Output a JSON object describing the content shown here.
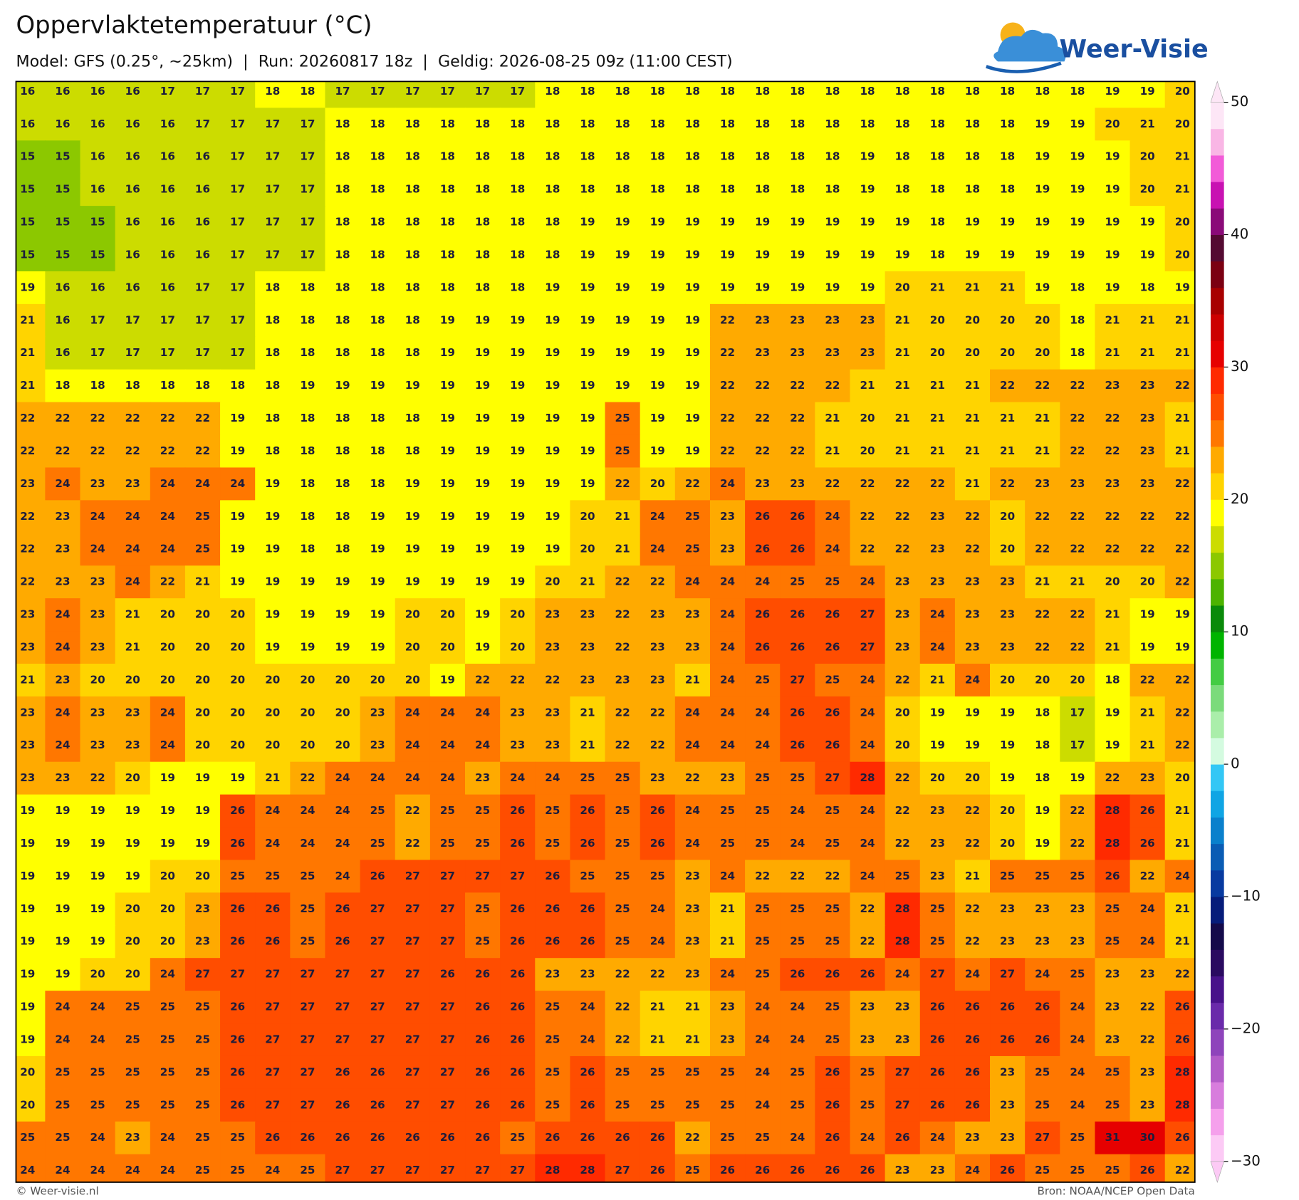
{
  "header": {
    "title": "Oppervlaktetemperatuur (°C)",
    "subtitle": "Model: GFS (0.25°, ~25km)  |  Run: 20260817 18z  |  Geldig: 2026-08-25 09z (11:00 CEST)",
    "logo": "Weer-Visie"
  },
  "map": {
    "values": [
      [
        16,
        16,
        16,
        16,
        17,
        17,
        17,
        18,
        18,
        17,
        17,
        17,
        17,
        17,
        17,
        18,
        18,
        18,
        18,
        18,
        18,
        18,
        18,
        18,
        18,
        18,
        18,
        18,
        18,
        18,
        18,
        19,
        19,
        20
      ],
      [
        16,
        16,
        16,
        16,
        16,
        17,
        17,
        17,
        17,
        18,
        18,
        18,
        18,
        18,
        18,
        18,
        18,
        18,
        18,
        18,
        18,
        18,
        18,
        18,
        18,
        18,
        18,
        18,
        18,
        19,
        19,
        20,
        21,
        20
      ],
      [
        15,
        15,
        16,
        16,
        16,
        16,
        17,
        17,
        17,
        18,
        18,
        18,
        18,
        18,
        18,
        18,
        18,
        18,
        18,
        18,
        18,
        18,
        18,
        18,
        19,
        18,
        18,
        18,
        18,
        19,
        19,
        19,
        20,
        21
      ],
      [
        15,
        15,
        16,
        16,
        16,
        16,
        17,
        17,
        17,
        18,
        18,
        18,
        18,
        18,
        18,
        18,
        18,
        18,
        18,
        18,
        18,
        18,
        18,
        18,
        19,
        18,
        18,
        18,
        18,
        19,
        19,
        19,
        20,
        21
      ],
      [
        15,
        15,
        15,
        16,
        16,
        16,
        17,
        17,
        17,
        18,
        18,
        18,
        18,
        18,
        18,
        18,
        19,
        19,
        19,
        19,
        19,
        19,
        19,
        19,
        19,
        19,
        18,
        19,
        19,
        19,
        19,
        19,
        19,
        20
      ],
      [
        15,
        15,
        15,
        16,
        16,
        16,
        17,
        17,
        17,
        18,
        18,
        18,
        18,
        18,
        18,
        18,
        19,
        19,
        19,
        19,
        19,
        19,
        19,
        19,
        19,
        19,
        18,
        19,
        19,
        19,
        19,
        19,
        19,
        20
      ],
      [
        19,
        16,
        16,
        16,
        16,
        17,
        17,
        18,
        18,
        18,
        18,
        18,
        18,
        18,
        18,
        19,
        19,
        19,
        19,
        19,
        19,
        19,
        19,
        19,
        19,
        20,
        21,
        21,
        21,
        19,
        18,
        19,
        18,
        19
      ],
      [
        21,
        16,
        17,
        17,
        17,
        17,
        17,
        18,
        18,
        18,
        18,
        18,
        19,
        19,
        19,
        19,
        19,
        19,
        19,
        19,
        22,
        23,
        23,
        23,
        23,
        21,
        20,
        20,
        20,
        20,
        18,
        21,
        21,
        21
      ],
      [
        21,
        16,
        17,
        17,
        17,
        17,
        17,
        18,
        18,
        18,
        18,
        18,
        19,
        19,
        19,
        19,
        19,
        19,
        19,
        19,
        22,
        23,
        23,
        23,
        23,
        21,
        20,
        20,
        20,
        20,
        18,
        21,
        21,
        21
      ],
      [
        21,
        18,
        18,
        18,
        18,
        18,
        18,
        18,
        19,
        19,
        19,
        19,
        19,
        19,
        19,
        19,
        19,
        19,
        19,
        19,
        22,
        22,
        22,
        22,
        21,
        21,
        21,
        21,
        22,
        22,
        22,
        23,
        23,
        22
      ],
      [
        22,
        22,
        22,
        22,
        22,
        22,
        19,
        18,
        18,
        18,
        18,
        18,
        19,
        19,
        19,
        19,
        19,
        25,
        19,
        19,
        22,
        22,
        22,
        21,
        20,
        21,
        21,
        21,
        21,
        21,
        22,
        22,
        23,
        21
      ],
      [
        22,
        22,
        22,
        22,
        22,
        22,
        19,
        18,
        18,
        18,
        18,
        18,
        19,
        19,
        19,
        19,
        19,
        25,
        19,
        19,
        22,
        22,
        22,
        21,
        20,
        21,
        21,
        21,
        21,
        21,
        22,
        22,
        23,
        21
      ],
      [
        23,
        24,
        23,
        23,
        24,
        24,
        24,
        19,
        18,
        18,
        18,
        19,
        19,
        19,
        19,
        19,
        19,
        22,
        20,
        22,
        24,
        23,
        23,
        22,
        22,
        22,
        22,
        21,
        22,
        23,
        23,
        23,
        23,
        22
      ],
      [
        22,
        23,
        24,
        24,
        24,
        25,
        19,
        19,
        18,
        18,
        19,
        19,
        19,
        19,
        19,
        19,
        20,
        21,
        24,
        25,
        23,
        26,
        26,
        24,
        22,
        22,
        23,
        22,
        20,
        22,
        22,
        22,
        22,
        22
      ],
      [
        22,
        23,
        24,
        24,
        24,
        25,
        19,
        19,
        18,
        18,
        19,
        19,
        19,
        19,
        19,
        19,
        20,
        21,
        24,
        25,
        23,
        26,
        26,
        24,
        22,
        22,
        23,
        22,
        20,
        22,
        22,
        22,
        22,
        22
      ],
      [
        22,
        23,
        23,
        24,
        22,
        21,
        19,
        19,
        19,
        19,
        19,
        19,
        19,
        19,
        19,
        20,
        21,
        22,
        22,
        24,
        24,
        24,
        25,
        25,
        24,
        23,
        23,
        23,
        23,
        21,
        21,
        20,
        20,
        22
      ],
      [
        23,
        24,
        23,
        21,
        20,
        20,
        20,
        19,
        19,
        19,
        19,
        20,
        20,
        19,
        20,
        23,
        23,
        22,
        23,
        23,
        24,
        26,
        26,
        26,
        27,
        23,
        24,
        23,
        23,
        22,
        22,
        21,
        19,
        19
      ],
      [
        23,
        24,
        23,
        21,
        20,
        20,
        20,
        19,
        19,
        19,
        19,
        20,
        20,
        19,
        20,
        23,
        23,
        22,
        23,
        23,
        24,
        26,
        26,
        26,
        27,
        23,
        24,
        23,
        23,
        22,
        22,
        21,
        19,
        19
      ],
      [
        21,
        23,
        20,
        20,
        20,
        20,
        20,
        20,
        20,
        20,
        20,
        20,
        19,
        22,
        22,
        22,
        23,
        23,
        23,
        21,
        24,
        25,
        27,
        25,
        24,
        22,
        21,
        24,
        20,
        20,
        20,
        18,
        22,
        22
      ],
      [
        23,
        24,
        23,
        23,
        24,
        20,
        20,
        20,
        20,
        20,
        23,
        24,
        24,
        24,
        23,
        23,
        21,
        22,
        22,
        24,
        24,
        24,
        26,
        26,
        24,
        20,
        19,
        19,
        19,
        18,
        17,
        19,
        21,
        22
      ],
      [
        23,
        24,
        23,
        23,
        24,
        20,
        20,
        20,
        20,
        20,
        23,
        24,
        24,
        24,
        23,
        23,
        21,
        22,
        22,
        24,
        24,
        24,
        26,
        26,
        24,
        20,
        19,
        19,
        19,
        18,
        17,
        19,
        21,
        22
      ],
      [
        23,
        23,
        22,
        20,
        19,
        19,
        19,
        21,
        22,
        24,
        24,
        24,
        24,
        23,
        24,
        24,
        25,
        25,
        23,
        22,
        23,
        25,
        25,
        27,
        28,
        22,
        20,
        20,
        19,
        18,
        19,
        22,
        23,
        20
      ],
      [
        19,
        19,
        19,
        19,
        19,
        19,
        26,
        24,
        24,
        24,
        25,
        22,
        25,
        25,
        26,
        25,
        26,
        25,
        26,
        24,
        25,
        25,
        24,
        25,
        24,
        22,
        23,
        22,
        20,
        19,
        22,
        28,
        26,
        21
      ],
      [
        19,
        19,
        19,
        19,
        19,
        19,
        26,
        24,
        24,
        24,
        25,
        22,
        25,
        25,
        26,
        25,
        26,
        25,
        26,
        24,
        25,
        25,
        24,
        25,
        24,
        22,
        23,
        22,
        20,
        19,
        22,
        28,
        26,
        21
      ],
      [
        19,
        19,
        19,
        19,
        20,
        20,
        25,
        25,
        25,
        24,
        26,
        27,
        27,
        27,
        27,
        26,
        25,
        25,
        25,
        23,
        24,
        22,
        22,
        22,
        24,
        25,
        23,
        21,
        25,
        25,
        25,
        26,
        22,
        24
      ],
      [
        19,
        19,
        19,
        20,
        20,
        23,
        26,
        26,
        25,
        26,
        27,
        27,
        27,
        25,
        26,
        26,
        26,
        25,
        24,
        23,
        21,
        25,
        25,
        25,
        22,
        28,
        25,
        22,
        23,
        23,
        23,
        25,
        24,
        21
      ],
      [
        19,
        19,
        19,
        20,
        20,
        23,
        26,
        26,
        25,
        26,
        27,
        27,
        27,
        25,
        26,
        26,
        26,
        25,
        24,
        23,
        21,
        25,
        25,
        25,
        22,
        28,
        25,
        22,
        23,
        23,
        23,
        25,
        24,
        21
      ],
      [
        19,
        19,
        20,
        20,
        24,
        27,
        27,
        27,
        27,
        27,
        27,
        27,
        26,
        26,
        26,
        23,
        23,
        22,
        22,
        23,
        24,
        25,
        26,
        26,
        26,
        24,
        27,
        24,
        27,
        24,
        25,
        23,
        23,
        22
      ],
      [
        19,
        24,
        24,
        25,
        25,
        25,
        26,
        27,
        27,
        27,
        27,
        27,
        27,
        26,
        26,
        25,
        24,
        22,
        21,
        21,
        23,
        24,
        24,
        25,
        23,
        23,
        26,
        26,
        26,
        26,
        24,
        23,
        22,
        26
      ],
      [
        19,
        24,
        24,
        25,
        25,
        25,
        26,
        27,
        27,
        27,
        27,
        27,
        27,
        26,
        26,
        25,
        24,
        22,
        21,
        21,
        23,
        24,
        24,
        25,
        23,
        23,
        26,
        26,
        26,
        26,
        24,
        23,
        22,
        26
      ],
      [
        20,
        25,
        25,
        25,
        25,
        25,
        26,
        27,
        27,
        26,
        26,
        27,
        27,
        26,
        26,
        25,
        26,
        25,
        25,
        25,
        25,
        24,
        25,
        26,
        25,
        27,
        26,
        26,
        23,
        25,
        24,
        25,
        23,
        28
      ],
      [
        20,
        25,
        25,
        25,
        25,
        25,
        26,
        27,
        27,
        26,
        26,
        27,
        27,
        26,
        26,
        25,
        26,
        25,
        25,
        25,
        25,
        24,
        25,
        26,
        25,
        27,
        26,
        26,
        23,
        25,
        24,
        25,
        23,
        28
      ],
      [
        25,
        25,
        24,
        23,
        24,
        25,
        25,
        26,
        26,
        26,
        26,
        26,
        26,
        26,
        25,
        26,
        26,
        26,
        26,
        22,
        25,
        25,
        24,
        26,
        24,
        26,
        24,
        23,
        23,
        27,
        25,
        31,
        30,
        26
      ],
      [
        24,
        24,
        24,
        24,
        24,
        25,
        25,
        24,
        25,
        27,
        27,
        27,
        27,
        27,
        27,
        28,
        28,
        27,
        26,
        25,
        26,
        26,
        26,
        26,
        26,
        23,
        23,
        24,
        26,
        25,
        25,
        25,
        26,
        22
      ]
    ]
  },
  "colorbar": {
    "lim": [
      -30,
      50
    ],
    "ticks": [
      50,
      40,
      30,
      20,
      10,
      0,
      {
        "value": -10,
        "label": "−10"
      },
      {
        "value": -20,
        "label": "−20"
      },
      {
        "value": -30,
        "label": "−30"
      }
    ],
    "colors": [
      "#fccaf5",
      "#f5a0ec",
      "#d87ddd",
      "#b25cc8",
      "#8e44bb",
      "#6a2aaa",
      "#48128a",
      "#2a0a60",
      "#140a4a",
      "#061c7a",
      "#083aa0",
      "#0a5cb4",
      "#0a80cc",
      "#10a5e4",
      "#33c7f5",
      "#d4fbe0",
      "#aaeeaa",
      "#7bdb7b",
      "#44cc44",
      "#00b400",
      "#0a8a0a",
      "#4cb300",
      "#8cc800",
      "#ccdc00",
      "#ffff00",
      "#ffd400",
      "#ffaa00",
      "#ff7700",
      "#ff4d00",
      "#ff2a00",
      "#e60000",
      "#cc0000",
      "#a80000",
      "#7b0012",
      "#540a32",
      "#8a0a78",
      "#c812b2",
      "#f25bd8",
      "#f9b6e5",
      "#fde6f6"
    ]
  },
  "footer": {
    "left": "© Weer-visie.nl",
    "right": "Bron: NOAA/NCEP Open Data"
  }
}
